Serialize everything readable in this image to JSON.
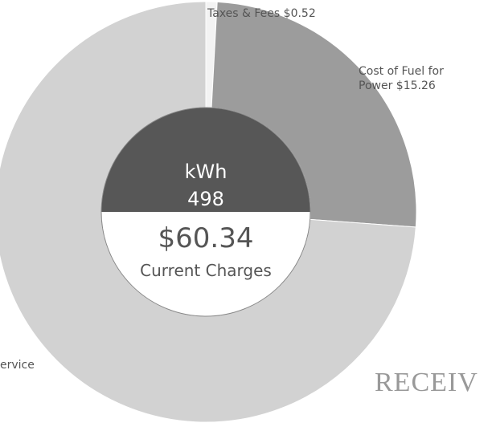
{
  "chart_data": {
    "type": "pie",
    "categories": [
      "Taxes & Fees",
      "Cost of Fuel for Power",
      "ervice"
    ],
    "values": [
      0.52,
      15.26,
      44.56
    ],
    "value_labels": [
      "$0.52",
      "$15.26",
      null
    ],
    "colors": [
      "#f3f3f3",
      "#9c9c9c",
      "#d2d2d2"
    ],
    "center": {
      "unit": "kWh",
      "usage": 498,
      "amount": "$60.34",
      "caption": "Current Charges"
    }
  },
  "stamp": "RECEIV"
}
